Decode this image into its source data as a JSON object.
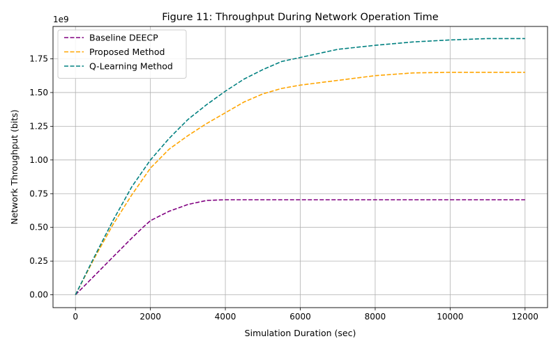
{
  "chart_data": {
    "type": "line",
    "title": "Figure 11: Throughput During Network Operation Time",
    "xlabel": "Simulation Duration (sec)",
    "ylabel": "Network Throughput (bits)",
    "y_multiplier_label": "1e9",
    "xlim": [
      -600,
      12600
    ],
    "ylim": [
      -0.095,
      1.99
    ],
    "xticks": [
      0,
      2000,
      4000,
      6000,
      8000,
      10000,
      12000
    ],
    "xtick_labels": [
      "0",
      "2000",
      "4000",
      "6000",
      "8000",
      "10000",
      "12000"
    ],
    "yticks": [
      0,
      0.25,
      0.5,
      0.75,
      1.0,
      1.25,
      1.5,
      1.75
    ],
    "ytick_labels": [
      "0.00",
      "0.25",
      "0.50",
      "0.75",
      "1.00",
      "1.25",
      "1.50",
      "1.75"
    ],
    "grid": true,
    "legend_position": "top-left",
    "line_style": "dashed",
    "series": [
      {
        "name": "Baseline DEECP",
        "color": "#800080",
        "x": [
          0,
          500,
          1000,
          1500,
          1800,
          2000,
          2500,
          3000,
          3500,
          4000,
          5000,
          6000,
          7000,
          8000,
          9000,
          10000,
          11000,
          12000
        ],
        "y": [
          0,
          0.14,
          0.28,
          0.42,
          0.5,
          0.55,
          0.62,
          0.67,
          0.7,
          0.705,
          0.705,
          0.705,
          0.705,
          0.705,
          0.705,
          0.705,
          0.705,
          0.705
        ]
      },
      {
        "name": "Proposed Method",
        "color": "#FFA500",
        "x": [
          0,
          500,
          1000,
          1500,
          2000,
          2500,
          3000,
          3500,
          4000,
          4500,
          5000,
          5500,
          6000,
          7000,
          8000,
          9000,
          10000,
          11000,
          12000
        ],
        "y": [
          0,
          0.27,
          0.52,
          0.74,
          0.94,
          1.08,
          1.18,
          1.27,
          1.35,
          1.43,
          1.49,
          1.53,
          1.555,
          1.59,
          1.625,
          1.645,
          1.65,
          1.65,
          1.65
        ]
      },
      {
        "name": "Q-Learning Method",
        "color": "#008080",
        "x": [
          0,
          500,
          1000,
          1500,
          2000,
          2500,
          3000,
          3500,
          4000,
          4500,
          5000,
          5500,
          6000,
          7000,
          8000,
          9000,
          10000,
          11000,
          12000
        ],
        "y": [
          0,
          0.28,
          0.55,
          0.8,
          1.0,
          1.16,
          1.3,
          1.41,
          1.51,
          1.6,
          1.67,
          1.73,
          1.76,
          1.82,
          1.85,
          1.875,
          1.89,
          1.9,
          1.9
        ]
      }
    ]
  }
}
